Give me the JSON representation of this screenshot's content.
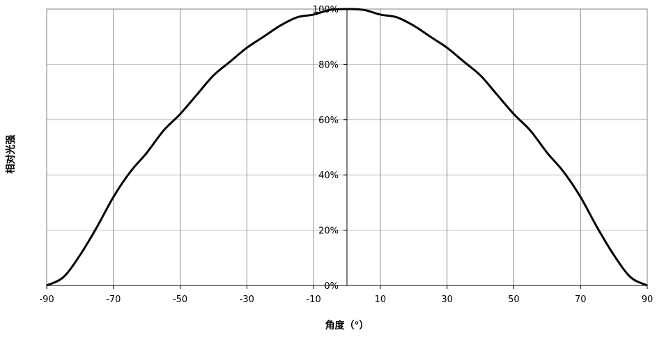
{
  "chart_data": {
    "type": "line",
    "title": "",
    "xlabel": "角度（°）",
    "ylabel": "相对光强",
    "xlim": [
      -90,
      90
    ],
    "ylim": [
      0,
      100
    ],
    "x_ticks": [
      -90,
      -70,
      -50,
      -30,
      -10,
      10,
      30,
      50,
      70,
      90
    ],
    "x_tick_labels": [
      "-90",
      "-70",
      "-50",
      "-30",
      "-10",
      "10",
      "30",
      "50",
      "70",
      "90"
    ],
    "y_ticks": [
      0,
      20,
      40,
      60,
      80,
      100
    ],
    "y_tick_labels": [
      "0%",
      "20%",
      "40%",
      "60%",
      "80%",
      "100%"
    ],
    "grid": true,
    "legend": "none",
    "series": [
      {
        "color": "#000000",
        "x": [
          -90,
          -85,
          -80,
          -75,
          -70,
          -65,
          -60,
          -55,
          -50,
          -45,
          -40,
          -35,
          -30,
          -25,
          -20,
          -15,
          -10,
          -5,
          0,
          5,
          10,
          15,
          20,
          25,
          30,
          35,
          40,
          45,
          50,
          55,
          60,
          65,
          70,
          75,
          80,
          85,
          90
        ],
        "values": [
          0,
          3,
          11,
          21,
          32,
          41,
          48,
          56,
          62,
          69,
          76,
          81,
          86,
          90,
          94,
          97,
          98,
          99.7,
          100,
          99.7,
          98,
          97,
          94,
          90,
          86,
          81,
          76,
          69,
          62,
          56,
          48,
          41,
          32,
          21,
          11,
          3,
          0
        ]
      }
    ]
  }
}
